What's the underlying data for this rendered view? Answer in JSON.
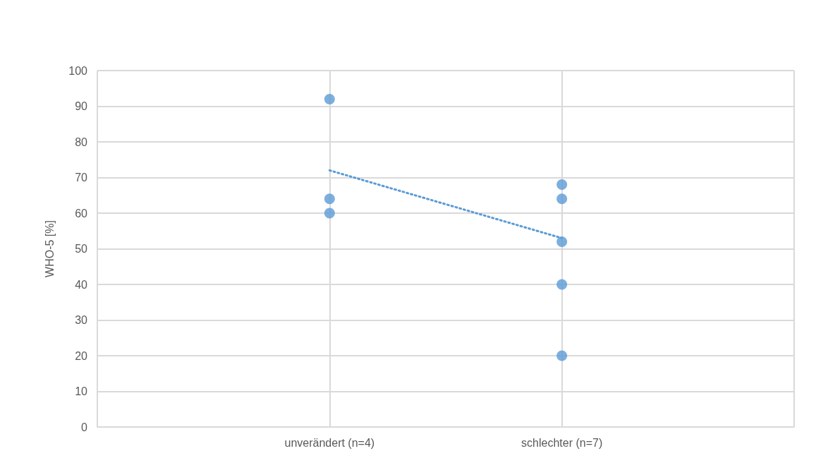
{
  "chart_data": {
    "type": "scatter",
    "ylabel": "WHO-5 [%]",
    "categories": [
      null,
      "unverändert (n=4)",
      "schlechter (n=7)",
      null
    ],
    "ylim": [
      0,
      100
    ],
    "yticks": [
      0,
      10,
      20,
      30,
      40,
      50,
      60,
      70,
      80,
      90,
      100
    ],
    "grid": true,
    "marker": "circle",
    "series": [
      {
        "color": "#5b9bd5",
        "x": [
          "unverändert (n=4)",
          "unverändert (n=4)",
          "unverändert (n=4)",
          "schlechter (n=7)",
          "schlechter (n=7)",
          "schlechter (n=7)",
          "schlechter (n=7)",
          "schlechter (n=7)"
        ],
        "values": [
          92,
          64,
          60,
          68,
          64,
          52,
          40,
          20
        ]
      },
      {
        "type": "line",
        "color": "#5b9bd5",
        "line_style": "dotted",
        "marker": "none",
        "x": [
          "unverändert (n=4)",
          "schlechter (n=7)"
        ],
        "values": [
          72,
          53
        ]
      }
    ]
  }
}
